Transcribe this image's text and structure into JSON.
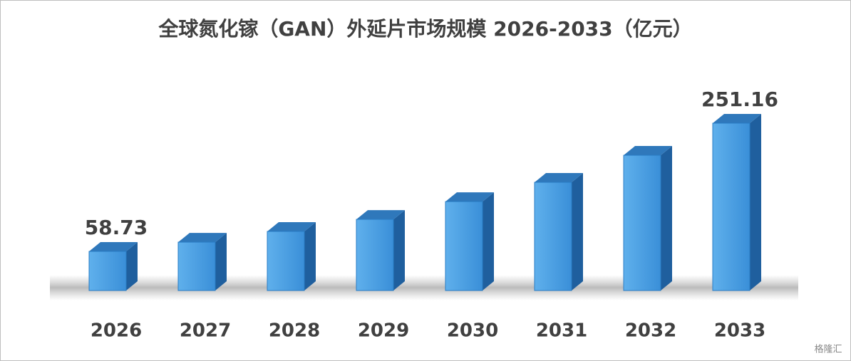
{
  "chart_data": {
    "type": "bar3d",
    "title": "全球氮化镓（GAN）外延片市场规模 2026-2033（亿元）",
    "categories": [
      "2026",
      "2027",
      "2028",
      "2029",
      "2030",
      "2031",
      "2032",
      "2033"
    ],
    "values": [
      58.73,
      72.6,
      88.7,
      106.8,
      133.5,
      162.4,
      203,
      251.16
    ],
    "value_labels": [
      "58.73",
      null,
      null,
      null,
      null,
      null,
      null,
      "251.16"
    ],
    "color": "#3d92dc",
    "watermark": "格隆汇"
  }
}
